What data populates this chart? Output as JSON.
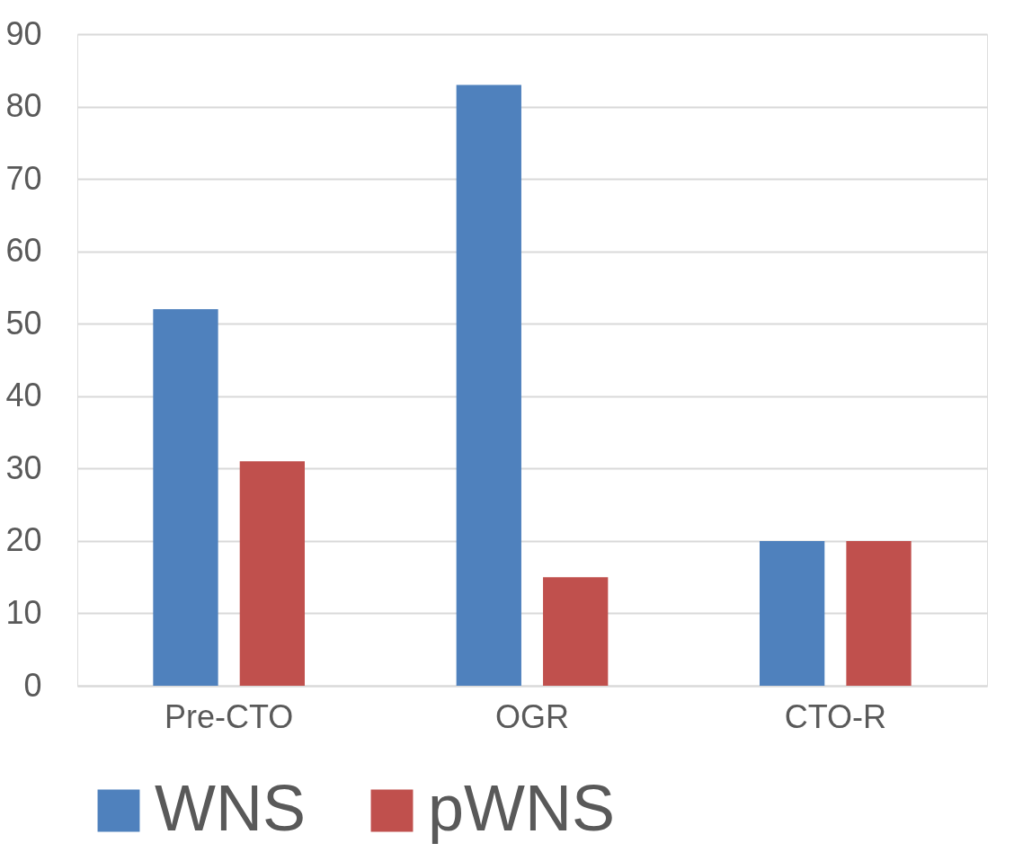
{
  "chart_data": {
    "type": "bar",
    "categories": [
      "Pre-CTO",
      "OGR",
      "CTO-R"
    ],
    "series": [
      {
        "name": "WNS",
        "color": "#4f81bd",
        "values": [
          52,
          83,
          20
        ]
      },
      {
        "name": "pWNS",
        "color": "#c0504d",
        "values": [
          31,
          15,
          20
        ]
      }
    ],
    "ylim": [
      0,
      90
    ],
    "yticks": [
      0,
      10,
      20,
      30,
      40,
      50,
      60,
      70,
      80,
      90
    ],
    "grid": "y",
    "legend": "bottom"
  }
}
